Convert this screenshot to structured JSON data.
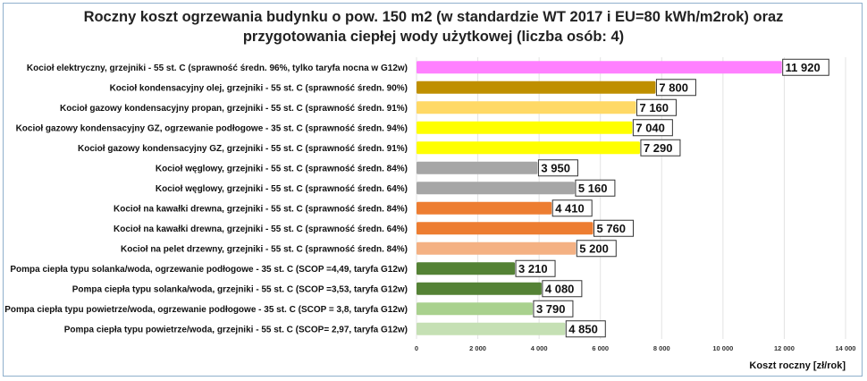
{
  "chart_data": {
    "type": "bar",
    "orientation": "horizontal",
    "title_line1": "Roczny koszt ogrzewania budynku o pow. 150 m2 (w standardzie WT 2017 i EU=80 kWh/m2rok) oraz",
    "title_line2": "przygotowania ciepłej wody użytkowej (liczba osób: 4)",
    "xlabel": "Koszt roczny [zł/rok]",
    "xlim": [
      0,
      14000
    ],
    "grid": true,
    "xticks": [
      0,
      2000,
      4000,
      6000,
      8000,
      10000,
      12000,
      14000
    ],
    "xtick_labels": [
      "0",
      "2 000",
      "4 000",
      "6 000",
      "8 000",
      "10 000",
      "12 000",
      "14 000"
    ],
    "categories": [
      "Kocioł  elektryczny,  grzejniki - 55 st. C  (sprawność średn. 96%, tylko taryfa nocna w G12w)",
      "Kocioł  kondensacyjny olej,  grzejniki - 55 st. C (sprawność średn. 90%)",
      "Kocioł gazowy kondensacyjny propan, grzejniki - 55 st. C (sprawność średn. 91%)",
      "Kocioł gazowy kondensacyjny GZ, ogrzewanie podłogowe - 35 st. C (sprawność średn. 94%)",
      "Kocioł gazowy kondensacyjny GZ, grzejniki - 55 st. C (sprawność średn. 91%)",
      "Kocioł węglowy,  grzejniki - 55 st. C (sprawność średn. 84%)",
      "Kocioł węglowy,  grzejniki - 55 st. C (sprawność średn. 64%)",
      "Kocioł na kawałki drewna, grzejniki - 55 st. C (sprawność średn. 84%)",
      "Kocioł na kawałki drewna, grzejniki - 55 st. C (sprawność średn. 64%)",
      "Kocioł na pelet drzewny, grzejniki - 55 st. C (sprawność średn. 84%)",
      "Pompa ciepła typu solanka/woda, ogrzewanie podłogowe - 35 st. C (SCOP =4,49, taryfa G12w)",
      "Pompa ciepła typu solanka/woda, grzejniki - 55 st. C (SCOP =3,53, taryfa G12w)",
      "Pompa ciepła typu powietrze/woda, ogrzewanie podłogowe - 35 st. C (SCOP = 3,8, taryfa G12w)",
      "Pompa ciepła typu powietrze/woda, grzejniki - 55 st. C (SCOP= 2,97, taryfa G12w)"
    ],
    "values": [
      11920,
      7800,
      7160,
      7040,
      7290,
      3950,
      5160,
      4410,
      5760,
      5200,
      3210,
      4080,
      3790,
      4850
    ],
    "value_labels": [
      "11 920",
      "7 800",
      "7 160",
      "7 040",
      "7 290",
      "3 950",
      "5 160",
      "4 410",
      "5 760",
      "5 200",
      "3 210",
      "4 080",
      "3 790",
      "4 850"
    ],
    "colors": [
      "#ff80ff",
      "#bf8f00",
      "#ffd966",
      "#ffff00",
      "#ffff00",
      "#a6a6a6",
      "#a6a6a6",
      "#ed7d31",
      "#ed7d31",
      "#f4b183",
      "#548235",
      "#548235",
      "#a9d18e",
      "#c5e0b4"
    ]
  }
}
